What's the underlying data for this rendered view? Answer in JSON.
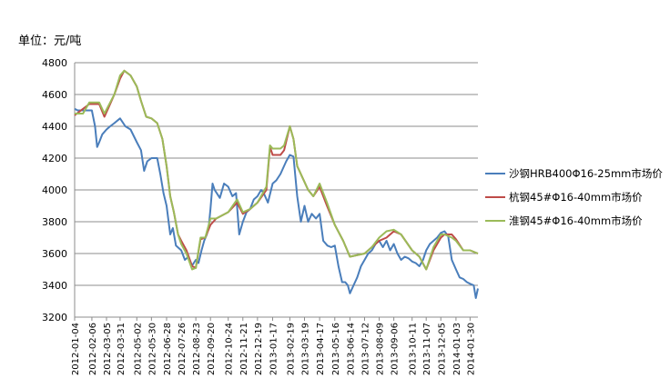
{
  "chart_data": {
    "type": "line",
    "unit_label": "单位：元/吨",
    "ylim": [
      3200,
      4800
    ],
    "yticks": [
      3200,
      3400,
      3600,
      3800,
      4000,
      4200,
      4400,
      4600,
      4800
    ],
    "grid": "horizontal",
    "legend_position": "right",
    "x_start_date": "2012-01-04",
    "x_end_date": "2014-02-14",
    "x_tick_labels": [
      "2012-01-04",
      "2012-02-06",
      "2012-03-05",
      "2012-03-31",
      "2012-05-02",
      "2012-05-30",
      "2012-06-28",
      "2012-07-26",
      "2012-08-23",
      "2012-09-20",
      "2012-10-24",
      "2012-11-21",
      "2012-12-19",
      "2013-01-17",
      "2013-02-19",
      "2013-03-19",
      "2013-04-17",
      "2013-05-16",
      "2013-06-14",
      "2013-07-12",
      "2013-08-09",
      "2013-09-06",
      "2013-10-11",
      "2013-11-07",
      "2013-12-05",
      "2014-01-03",
      "2014-01-30"
    ],
    "series": [
      {
        "name": "沙钢HRB400Φ16-25mm市场价",
        "color": "#4a7ebb",
        "points": [
          [
            "2012-01-04",
            4510
          ],
          [
            "2012-01-10",
            4500
          ],
          [
            "2012-02-06",
            4500
          ],
          [
            "2012-02-12",
            4400
          ],
          [
            "2012-02-16",
            4270
          ],
          [
            "2012-02-20",
            4300
          ],
          [
            "2012-02-26",
            4350
          ],
          [
            "2012-03-05",
            4380
          ],
          [
            "2012-03-12",
            4400
          ],
          [
            "2012-03-20",
            4420
          ],
          [
            "2012-03-31",
            4450
          ],
          [
            "2012-04-10",
            4400
          ],
          [
            "2012-04-20",
            4380
          ],
          [
            "2012-05-02",
            4300
          ],
          [
            "2012-05-10",
            4250
          ],
          [
            "2012-05-16",
            4120
          ],
          [
            "2012-05-22",
            4180
          ],
          [
            "2012-05-30",
            4200
          ],
          [
            "2012-06-10",
            4200
          ],
          [
            "2012-06-16",
            4100
          ],
          [
            "2012-06-22",
            3980
          ],
          [
            "2012-06-28",
            3900
          ],
          [
            "2012-07-05",
            3720
          ],
          [
            "2012-07-10",
            3760
          ],
          [
            "2012-07-16",
            3650
          ],
          [
            "2012-07-26",
            3620
          ],
          [
            "2012-08-02",
            3560
          ],
          [
            "2012-08-09",
            3580
          ],
          [
            "2012-08-15",
            3520
          ],
          [
            "2012-08-23",
            3560
          ],
          [
            "2012-08-28",
            3540
          ],
          [
            "2012-09-03",
            3620
          ],
          [
            "2012-09-08",
            3680
          ],
          [
            "2012-09-13",
            3720
          ],
          [
            "2012-09-17",
            3780
          ],
          [
            "2012-09-20",
            3880
          ],
          [
            "2012-09-24",
            4040
          ],
          [
            "2012-09-28",
            4000
          ],
          [
            "2012-10-08",
            3950
          ],
          [
            "2012-10-16",
            4040
          ],
          [
            "2012-10-24",
            4020
          ],
          [
            "2012-11-01",
            3960
          ],
          [
            "2012-11-08",
            3980
          ],
          [
            "2012-11-14",
            3720
          ],
          [
            "2012-11-21",
            3800
          ],
          [
            "2012-11-28",
            3860
          ],
          [
            "2012-12-05",
            3880
          ],
          [
            "2012-12-12",
            3940
          ],
          [
            "2012-12-19",
            3960
          ],
          [
            "2012-12-26",
            4000
          ],
          [
            "2012-12-31",
            3980
          ],
          [
            "2013-01-08",
            3920
          ],
          [
            "2013-01-17",
            4040
          ],
          [
            "2013-01-24",
            4060
          ],
          [
            "2013-02-01",
            4100
          ],
          [
            "2013-02-12",
            4180
          ],
          [
            "2013-02-19",
            4220
          ],
          [
            "2013-02-26",
            4210
          ],
          [
            "2013-03-05",
            3960
          ],
          [
            "2013-03-12",
            3800
          ],
          [
            "2013-03-19",
            3900
          ],
          [
            "2013-03-26",
            3800
          ],
          [
            "2013-04-02",
            3850
          ],
          [
            "2013-04-10",
            3820
          ],
          [
            "2013-04-17",
            3850
          ],
          [
            "2013-04-24",
            3680
          ],
          [
            "2013-05-02",
            3650
          ],
          [
            "2013-05-09",
            3640
          ],
          [
            "2013-05-16",
            3650
          ],
          [
            "2013-05-23",
            3520
          ],
          [
            "2013-05-30",
            3420
          ],
          [
            "2013-06-05",
            3420
          ],
          [
            "2013-06-10",
            3400
          ],
          [
            "2013-06-14",
            3350
          ],
          [
            "2013-06-21",
            3400
          ],
          [
            "2013-06-28",
            3450
          ],
          [
            "2013-07-05",
            3520
          ],
          [
            "2013-07-12",
            3560
          ],
          [
            "2013-07-19",
            3600
          ],
          [
            "2013-07-26",
            3620
          ],
          [
            "2013-08-02",
            3660
          ],
          [
            "2013-08-09",
            3680
          ],
          [
            "2013-08-16",
            3640
          ],
          [
            "2013-08-23",
            3680
          ],
          [
            "2013-08-30",
            3620
          ],
          [
            "2013-09-06",
            3660
          ],
          [
            "2013-09-13",
            3600
          ],
          [
            "2013-09-20",
            3560
          ],
          [
            "2013-09-27",
            3580
          ],
          [
            "2013-10-04",
            3570
          ],
          [
            "2013-10-11",
            3550
          ],
          [
            "2013-10-18",
            3540
          ],
          [
            "2013-10-25",
            3520
          ],
          [
            "2013-11-01",
            3560
          ],
          [
            "2013-11-07",
            3620
          ],
          [
            "2013-11-14",
            3660
          ],
          [
            "2013-11-21",
            3680
          ],
          [
            "2013-11-28",
            3700
          ],
          [
            "2013-12-05",
            3730
          ],
          [
            "2013-12-12",
            3740
          ],
          [
            "2013-12-19",
            3710
          ],
          [
            "2013-12-26",
            3560
          ],
          [
            "2014-01-03",
            3500
          ],
          [
            "2014-01-10",
            3450
          ],
          [
            "2014-01-17",
            3440
          ],
          [
            "2014-01-24",
            3420
          ],
          [
            "2014-01-30",
            3410
          ],
          [
            "2014-02-06",
            3400
          ],
          [
            "2014-02-10",
            3320
          ],
          [
            "2014-02-14",
            3380
          ]
        ]
      },
      {
        "name": "杭钢45#Φ16-40mm市场价",
        "color": "#be4b48",
        "points": [
          [
            "2012-01-04",
            4470
          ],
          [
            "2012-02-01",
            4540
          ],
          [
            "2012-02-20",
            4540
          ],
          [
            "2012-03-01",
            4460
          ],
          [
            "2012-03-12",
            4540
          ],
          [
            "2012-03-20",
            4600
          ],
          [
            "2012-03-31",
            4700
          ],
          [
            "2012-04-08",
            4750
          ],
          [
            "2012-04-20",
            4720
          ],
          [
            "2012-05-02",
            4650
          ],
          [
            "2012-05-10",
            4560
          ],
          [
            "2012-05-20",
            4460
          ],
          [
            "2012-05-30",
            4450
          ],
          [
            "2012-06-10",
            4420
          ],
          [
            "2012-06-20",
            4320
          ],
          [
            "2012-06-28",
            4150
          ],
          [
            "2012-07-05",
            3960
          ],
          [
            "2012-07-12",
            3860
          ],
          [
            "2012-07-20",
            3720
          ],
          [
            "2012-07-26",
            3680
          ],
          [
            "2012-08-05",
            3620
          ],
          [
            "2012-08-16",
            3520
          ],
          [
            "2012-08-23",
            3510
          ],
          [
            "2012-09-01",
            3690
          ],
          [
            "2012-09-10",
            3700
          ],
          [
            "2012-09-20",
            3780
          ],
          [
            "2012-10-01",
            3820
          ],
          [
            "2012-10-24",
            3860
          ],
          [
            "2012-11-10",
            3920
          ],
          [
            "2012-11-21",
            3850
          ],
          [
            "2012-12-05",
            3880
          ],
          [
            "2012-12-19",
            3920
          ],
          [
            "2013-01-05",
            4000
          ],
          [
            "2013-01-12",
            4270
          ],
          [
            "2013-01-17",
            4220
          ],
          [
            "2013-02-01",
            4220
          ],
          [
            "2013-02-08",
            4250
          ],
          [
            "2013-02-19",
            4400
          ],
          [
            "2013-02-26",
            4320
          ],
          [
            "2013-03-05",
            4150
          ],
          [
            "2013-03-19",
            4050
          ],
          [
            "2013-03-26",
            4000
          ],
          [
            "2013-04-05",
            3960
          ],
          [
            "2013-04-17",
            4020
          ],
          [
            "2013-05-01",
            3900
          ],
          [
            "2013-05-16",
            3780
          ],
          [
            "2013-06-01",
            3680
          ],
          [
            "2013-06-14",
            3580
          ],
          [
            "2013-07-12",
            3600
          ],
          [
            "2013-07-26",
            3640
          ],
          [
            "2013-08-09",
            3680
          ],
          [
            "2013-08-23",
            3700
          ],
          [
            "2013-09-06",
            3740
          ],
          [
            "2013-09-20",
            3720
          ],
          [
            "2013-10-11",
            3620
          ],
          [
            "2013-10-25",
            3580
          ],
          [
            "2013-11-07",
            3500
          ],
          [
            "2013-11-21",
            3620
          ],
          [
            "2013-12-05",
            3700
          ],
          [
            "2013-12-12",
            3720
          ],
          [
            "2013-12-26",
            3720
          ],
          [
            "2014-01-03",
            3690
          ],
          [
            "2014-01-17",
            3620
          ],
          [
            "2014-01-30",
            3620
          ],
          [
            "2014-02-14",
            3600
          ]
        ]
      },
      {
        "name": "淮钢45#Φ16-40mm市场价",
        "color": "#9bbb59",
        "points": [
          [
            "2012-01-04",
            4480
          ],
          [
            "2012-01-20",
            4480
          ],
          [
            "2012-02-01",
            4550
          ],
          [
            "2012-02-20",
            4550
          ],
          [
            "2012-03-01",
            4480
          ],
          [
            "2012-03-12",
            4550
          ],
          [
            "2012-03-20",
            4600
          ],
          [
            "2012-03-31",
            4720
          ],
          [
            "2012-04-08",
            4750
          ],
          [
            "2012-04-20",
            4720
          ],
          [
            "2012-05-02",
            4650
          ],
          [
            "2012-05-10",
            4560
          ],
          [
            "2012-05-20",
            4460
          ],
          [
            "2012-05-30",
            4450
          ],
          [
            "2012-06-10",
            4420
          ],
          [
            "2012-06-20",
            4320
          ],
          [
            "2012-06-28",
            4150
          ],
          [
            "2012-07-05",
            3960
          ],
          [
            "2012-07-12",
            3860
          ],
          [
            "2012-07-20",
            3720
          ],
          [
            "2012-07-26",
            3660
          ],
          [
            "2012-08-05",
            3600
          ],
          [
            "2012-08-16",
            3500
          ],
          [
            "2012-08-23",
            3510
          ],
          [
            "2012-09-01",
            3700
          ],
          [
            "2012-09-10",
            3700
          ],
          [
            "2012-09-20",
            3820
          ],
          [
            "2012-10-01",
            3820
          ],
          [
            "2012-10-24",
            3860
          ],
          [
            "2012-11-10",
            3940
          ],
          [
            "2012-11-21",
            3860
          ],
          [
            "2012-12-05",
            3880
          ],
          [
            "2012-12-19",
            3920
          ],
          [
            "2013-01-05",
            4020
          ],
          [
            "2013-01-12",
            4280
          ],
          [
            "2013-01-17",
            4260
          ],
          [
            "2013-02-01",
            4260
          ],
          [
            "2013-02-08",
            4280
          ],
          [
            "2013-02-19",
            4400
          ],
          [
            "2013-02-26",
            4320
          ],
          [
            "2013-03-05",
            4150
          ],
          [
            "2013-03-19",
            4050
          ],
          [
            "2013-03-26",
            4000
          ],
          [
            "2013-04-05",
            3960
          ],
          [
            "2013-04-17",
            4040
          ],
          [
            "2013-05-01",
            3920
          ],
          [
            "2013-05-16",
            3780
          ],
          [
            "2013-06-01",
            3680
          ],
          [
            "2013-06-14",
            3580
          ],
          [
            "2013-07-12",
            3600
          ],
          [
            "2013-07-26",
            3640
          ],
          [
            "2013-08-09",
            3700
          ],
          [
            "2013-08-23",
            3740
          ],
          [
            "2013-09-06",
            3750
          ],
          [
            "2013-09-20",
            3720
          ],
          [
            "2013-10-11",
            3620
          ],
          [
            "2013-10-25",
            3580
          ],
          [
            "2013-11-07",
            3500
          ],
          [
            "2013-11-21",
            3640
          ],
          [
            "2013-12-05",
            3720
          ],
          [
            "2013-12-12",
            3720
          ],
          [
            "2013-12-26",
            3700
          ],
          [
            "2014-01-03",
            3680
          ],
          [
            "2014-01-17",
            3620
          ],
          [
            "2014-01-30",
            3620
          ],
          [
            "2014-02-14",
            3600
          ]
        ]
      }
    ]
  }
}
